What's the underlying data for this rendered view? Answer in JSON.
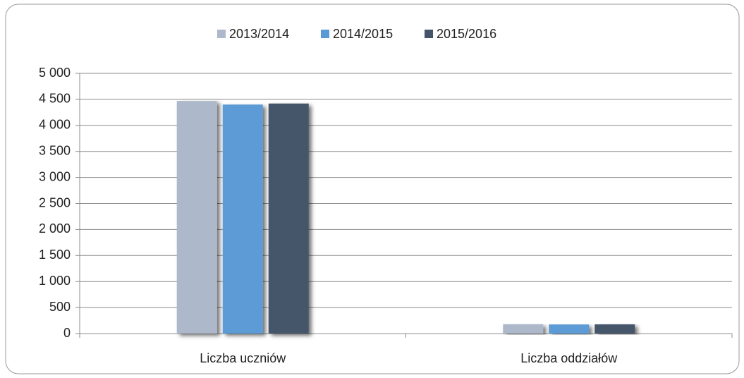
{
  "chart_data": {
    "type": "bar",
    "categories": [
      "Liczba uczniów",
      "Liczba oddziałów"
    ],
    "series": [
      {
        "name": "2013/2014",
        "color": "#adb9ca",
        "values": [
          4470,
          180
        ]
      },
      {
        "name": "2014/2015",
        "color": "#5b9bd5",
        "values": [
          4400,
          175
        ]
      },
      {
        "name": "2015/2016",
        "color": "#44546a",
        "values": [
          4420,
          178
        ]
      }
    ],
    "ylim": [
      0,
      5000
    ],
    "yticks": [
      0,
      500,
      {
        "value": 1000,
        "label": "1 000"
      },
      {
        "value": 1500,
        "label": "1 500"
      },
      {
        "value": 2000,
        "label": "2 000"
      },
      {
        "value": 2500,
        "label": "2 500"
      },
      {
        "value": 3000,
        "label": "3 000"
      },
      {
        "value": 3500,
        "label": "3 500"
      },
      {
        "value": 4000,
        "label": "4 000"
      },
      {
        "value": 4500,
        "label": "4 500"
      },
      {
        "value": 5000,
        "label": "5 000"
      }
    ],
    "grid": true,
    "legend": "top"
  }
}
